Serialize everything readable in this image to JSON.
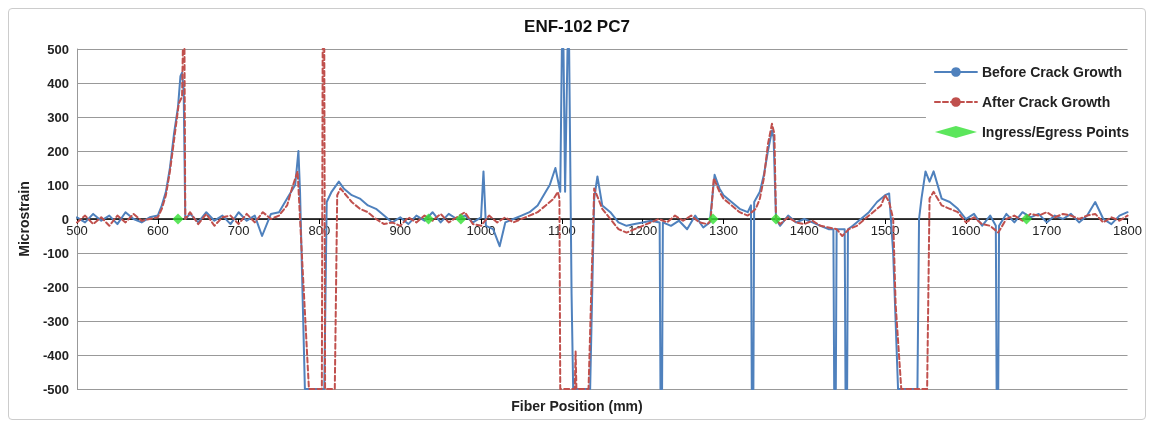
{
  "chart_data": {
    "type": "line",
    "title": "ENF-102 PC7",
    "xlabel": "Fiber Position (mm)",
    "ylabel": "Microstrain",
    "xlim": [
      500,
      1800
    ],
    "xticks": [
      500,
      600,
      700,
      800,
      900,
      1000,
      1100,
      1200,
      1300,
      1400,
      1500,
      1600,
      1700,
      1800
    ],
    "ylim": [
      -500,
      500
    ],
    "yticks": [
      -500,
      -400,
      -300,
      -200,
      -100,
      0,
      100,
      200,
      300,
      400,
      500
    ],
    "grid": "y",
    "legend": "top right",
    "marker": "none",
    "series": [
      {
        "name": "Before Crack Growth",
        "color": "#4f81bd",
        "line_style": "solid",
        "x": [
          500,
          510,
          520,
          530,
          540,
          550,
          560,
          570,
          580,
          590,
          600,
          605,
          610,
          615,
          620,
          625,
          628,
          630,
          632,
          634,
          640,
          650,
          660,
          670,
          680,
          690,
          700,
          710,
          720,
          729,
          740,
          750,
          760,
          765,
          770,
          774,
          776,
          782,
          790,
          800,
          806,
          809,
          815,
          824,
          830,
          840,
          850,
          860,
          870,
          880,
          890,
          900,
          910,
          920,
          930,
          940,
          950,
          960,
          970,
          980,
          990,
          1000,
          1003,
          1006,
          1015,
          1023,
          1030,
          1040,
          1050,
          1060,
          1070,
          1080,
          1085,
          1092,
          1098,
          1100,
          1102,
          1104,
          1107,
          1109,
          1112,
          1114,
          1130,
          1135,
          1140,
          1144,
          1150,
          1160,
          1170,
          1180,
          1190,
          1200,
          1210,
          1221,
          1222,
          1224,
          1225,
          1235,
          1245,
          1255,
          1265,
          1275,
          1283,
          1289,
          1295,
          1300,
          1310,
          1320,
          1330,
          1334,
          1335,
          1337,
          1338,
          1345,
          1350,
          1355,
          1360,
          1362,
          1365,
          1370,
          1380,
          1390,
          1400,
          1410,
          1420,
          1430,
          1436,
          1437,
          1439,
          1440,
          1450,
          1451,
          1453,
          1454,
          1460,
          1470,
          1480,
          1490,
          1500,
          1505,
          1510,
          1516,
          1540,
          1542,
          1545,
          1550,
          1555,
          1560,
          1570,
          1580,
          1590,
          1600,
          1610,
          1620,
          1630,
          1637,
          1638,
          1640,
          1641,
          1650,
          1660,
          1670,
          1680,
          1690,
          1700,
          1710,
          1720,
          1730,
          1740,
          1750,
          1760,
          1770,
          1780,
          1790,
          1800
        ],
        "values": [
          5,
          -10,
          15,
          -5,
          10,
          -15,
          20,
          0,
          -10,
          5,
          10,
          40,
          80,
          150,
          250,
          330,
          420,
          430,
          380,
          0,
          15,
          -10,
          20,
          -5,
          10,
          -15,
          20,
          -5,
          10,
          -50,
          15,
          20,
          60,
          80,
          100,
          200,
          80,
          -500,
          -500,
          -500,
          -500,
          50,
          80,
          110,
          90,
          70,
          60,
          40,
          30,
          10,
          -10,
          5,
          -15,
          10,
          -5,
          20,
          -10,
          15,
          0,
          10,
          -10,
          5,
          140,
          -20,
          -30,
          -80,
          -10,
          0,
          10,
          20,
          40,
          80,
          100,
          150,
          80,
          500,
          500,
          80,
          500,
          500,
          -220,
          -500,
          -500,
          -500,
          60,
          125,
          40,
          20,
          -10,
          -20,
          -15,
          -10,
          -5,
          -10,
          -500,
          -500,
          -10,
          -20,
          -5,
          -30,
          10,
          -25,
          -10,
          130,
          90,
          70,
          50,
          30,
          20,
          40,
          -500,
          -500,
          50,
          80,
          130,
          200,
          260,
          240,
          0,
          -20,
          10,
          -10,
          0,
          -10,
          -20,
          -30,
          -30,
          -500,
          -500,
          -30,
          -30,
          -500,
          -500,
          -30,
          -20,
          0,
          20,
          50,
          70,
          75,
          -100,
          -500,
          -500,
          0,
          60,
          140,
          110,
          140,
          60,
          50,
          30,
          0,
          15,
          -20,
          10,
          -20,
          -500,
          -500,
          -20,
          15,
          -10,
          20,
          5,
          15,
          -10,
          10,
          0,
          15,
          -10,
          10,
          50,
          0,
          -15,
          10,
          20
        ]
      },
      {
        "name": "After Crack Growth",
        "color": "#c0504d",
        "line_style": "dashed",
        "x": [
          500,
          510,
          520,
          530,
          540,
          550,
          560,
          570,
          580,
          590,
          600,
          605,
          610,
          615,
          620,
          626,
          630,
          631,
          633,
          634,
          640,
          650,
          660,
          670,
          680,
          690,
          700,
          710,
          720,
          730,
          740,
          750,
          760,
          766,
          773,
          776,
          787,
          803,
          804,
          806,
          807,
          819,
          822,
          826,
          840,
          850,
          860,
          870,
          880,
          890,
          900,
          910,
          920,
          930,
          940,
          950,
          960,
          970,
          980,
          990,
          1000,
          1010,
          1020,
          1030,
          1040,
          1050,
          1060,
          1070,
          1080,
          1090,
          1095,
          1097,
          1098,
          1116,
          1117,
          1118,
          1133,
          1140,
          1150,
          1160,
          1170,
          1180,
          1190,
          1200,
          1210,
          1220,
          1230,
          1240,
          1250,
          1260,
          1270,
          1280,
          1284,
          1288,
          1295,
          1300,
          1310,
          1320,
          1330,
          1340,
          1345,
          1350,
          1355,
          1360,
          1363,
          1365,
          1370,
          1380,
          1390,
          1400,
          1410,
          1420,
          1430,
          1440,
          1447,
          1455,
          1465,
          1475,
          1485,
          1495,
          1500,
          1505,
          1510,
          1513,
          1520,
          1552,
          1555,
          1560,
          1570,
          1580,
          1590,
          1600,
          1610,
          1620,
          1630,
          1640,
          1650,
          1660,
          1670,
          1680,
          1690,
          1700,
          1710,
          1720,
          1730,
          1740,
          1750,
          1760,
          1770,
          1780,
          1790,
          1800
        ],
        "values": [
          -10,
          10,
          -15,
          5,
          -20,
          10,
          -10,
          15,
          -5,
          0,
          5,
          30,
          70,
          140,
          230,
          340,
          360,
          500,
          500,
          0,
          20,
          -15,
          15,
          -20,
          5,
          10,
          -15,
          15,
          -10,
          20,
          0,
          10,
          40,
          90,
          140,
          0,
          -500,
          -500,
          500,
          500,
          -500,
          -500,
          70,
          90,
          50,
          30,
          20,
          0,
          -15,
          -10,
          -20,
          5,
          -10,
          10,
          -5,
          15,
          -10,
          5,
          20,
          -15,
          -20,
          10,
          -10,
          5,
          -10,
          0,
          10,
          20,
          40,
          60,
          80,
          60,
          -500,
          -500,
          -390,
          -500,
          -500,
          90,
          30,
          0,
          -30,
          -40,
          -30,
          -20,
          -10,
          0,
          -10,
          10,
          -5,
          10,
          -10,
          -15,
          -5,
          120,
          80,
          60,
          40,
          20,
          10,
          30,
          60,
          120,
          220,
          280,
          250,
          0,
          -15,
          5,
          -10,
          -15,
          -5,
          -20,
          -25,
          -30,
          -50,
          -30,
          -20,
          0,
          20,
          40,
          70,
          50,
          0,
          -250,
          -500,
          -500,
          60,
          80,
          40,
          30,
          20,
          -10,
          5,
          -15,
          -20,
          -40,
          0,
          10,
          -5,
          15,
          10,
          20,
          5,
          15,
          10,
          0,
          10,
          15,
          -10,
          5,
          -5,
          10
        ]
      },
      {
        "name": "Ingress/Egress Points",
        "type": "scatter",
        "marker": "diamond",
        "color": "#33e033",
        "x": [
          625,
          935,
          975,
          1287,
          1365,
          1675
        ],
        "values": [
          0,
          0,
          0,
          0,
          0,
          0
        ]
      }
    ]
  }
}
